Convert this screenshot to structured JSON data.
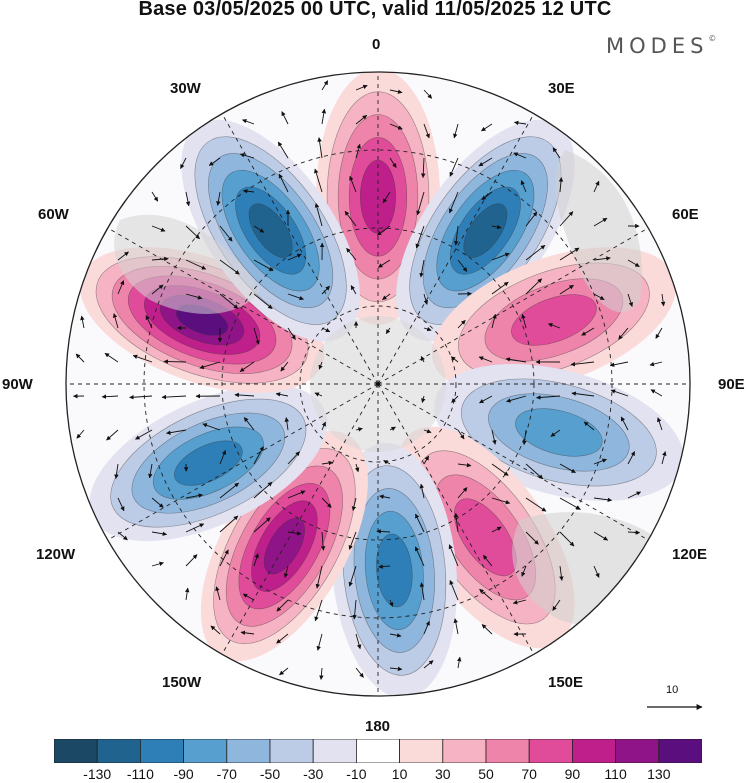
{
  "title": "Base 03/05/2025 00 UTC, valid 11/05/2025 12 UTC",
  "brand": "MODES",
  "brand_mark": "©",
  "longitude_labels": {
    "lon_0": "0",
    "lon_30e": "30E",
    "lon_60e": "60E",
    "lon_90e": "90E",
    "lon_120e": "120E",
    "lon_150e": "150E",
    "lon_180": "180",
    "lon_150w": "150W",
    "lon_120w": "120W",
    "lon_90w": "90W",
    "lon_60w": "60W",
    "lon_30w": "30W"
  },
  "vector_reference": "10",
  "colorbar": {
    "colors": [
      "#1b4965",
      "#21638f",
      "#2e7fb8",
      "#569fcf",
      "#8fb6dc",
      "#bccbe6",
      "#e2e2f0",
      "#ffffff",
      "#fbdada",
      "#f5b3c3",
      "#ef84ab",
      "#e04c99",
      "#bf1f8b",
      "#8f1487",
      "#5b0f7e"
    ],
    "labels": [
      "-130",
      "-110",
      "-90",
      "-70",
      "-50",
      "-30",
      "-10",
      "10",
      "30",
      "50",
      "70",
      "90",
      "110",
      "130"
    ]
  },
  "anomaly_centers": [
    {
      "sign": "positive",
      "value_class": "70-90",
      "lon": 0
    },
    {
      "sign": "negative",
      "value_class": "-90 to -110",
      "lon": 35
    },
    {
      "sign": "positive",
      "value_class": "50-70",
      "lon": 70
    },
    {
      "sign": "negative",
      "value_class": "-50 to -70",
      "lon": 105
    },
    {
      "sign": "positive",
      "value_class": "50-70",
      "lon": 145
    },
    {
      "sign": "negative",
      "value_class": "-70 to -90",
      "lon": 175
    },
    {
      "sign": "positive",
      "value_class": "90-110",
      "lon": 210
    },
    {
      "sign": "negative",
      "value_class": "-70 to -90",
      "lon": 245
    },
    {
      "sign": "positive",
      "value_class": "110-130",
      "lon": 290
    },
    {
      "sign": "negative",
      "value_class": "-90 to -110",
      "lon": 325
    }
  ]
}
